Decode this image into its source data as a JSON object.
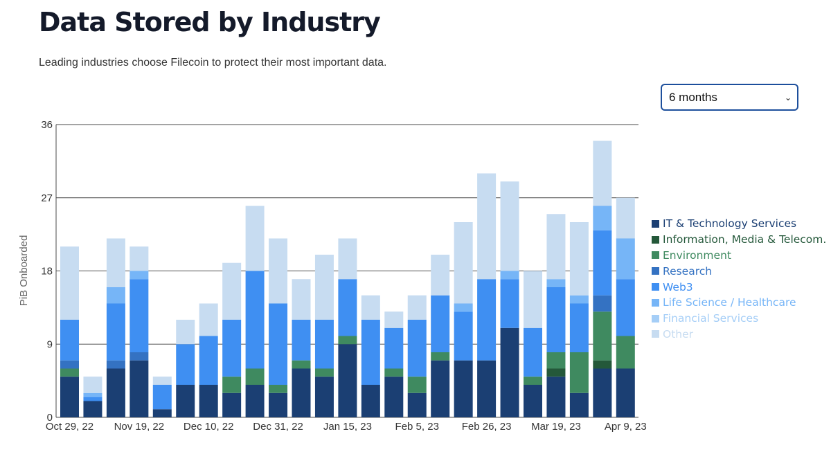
{
  "header": {
    "title": "Data Stored by Industry",
    "subtitle": "Leading industries choose Filecoin to protect their most important data."
  },
  "range_select": {
    "value": "6 months"
  },
  "chart_data": {
    "type": "bar",
    "stacked": true,
    "title": "Data Stored by Industry",
    "xlabel": "",
    "ylabel": "PiB Onboarded",
    "ylim": [
      0,
      36
    ],
    "yticks": [
      0,
      9,
      18,
      27,
      36
    ],
    "grid": true,
    "legend_position": "right",
    "x_tick_labels": [
      "Oct 29, 22",
      "Nov 19, 22",
      "Dec 10, 22",
      "Dec 31, 22",
      "Jan 15, 23",
      "Feb 5, 23",
      "Feb 26, 23",
      "Mar 19, 23",
      "Apr 9, 23"
    ],
    "x_tick_bar_index": [
      0,
      3,
      6,
      9,
      12,
      15,
      18,
      21,
      24
    ],
    "bar_count": 25,
    "series": [
      {
        "name": "IT & Technology Services",
        "color": "#1b3f73",
        "values": [
          5,
          2,
          6,
          7,
          1,
          4,
          4,
          3,
          4,
          3,
          6,
          5,
          9,
          4,
          5,
          3,
          7,
          7,
          7,
          11,
          4,
          5,
          3,
          6,
          6
        ]
      },
      {
        "name": "Information, Media & Telecom.",
        "color": "#24583a",
        "values": [
          0,
          0,
          0,
          0,
          0,
          0,
          0,
          0,
          0,
          0,
          0,
          0,
          0,
          0,
          0,
          0,
          0,
          0,
          0,
          0,
          0,
          1,
          0,
          1,
          0
        ]
      },
      {
        "name": "Environment",
        "color": "#3f8a60",
        "values": [
          1,
          0,
          0,
          0,
          0,
          0,
          0,
          2,
          2,
          1,
          1,
          1,
          1,
          0,
          1,
          2,
          1,
          0,
          0,
          0,
          1,
          2,
          5,
          6,
          4
        ]
      },
      {
        "name": "Research",
        "color": "#3472c2",
        "values": [
          1,
          0,
          1,
          1,
          0,
          0,
          0,
          0,
          0,
          0,
          0,
          0,
          0,
          0,
          0,
          0,
          0,
          0,
          0,
          0,
          0,
          0,
          0,
          2,
          0
        ]
      },
      {
        "name": "Web3",
        "color": "#3f8ff2",
        "values": [
          5,
          0.5,
          7,
          9,
          3,
          5,
          6,
          7,
          12,
          10,
          5,
          6,
          7,
          8,
          5,
          7,
          7,
          6,
          10,
          6,
          6,
          8,
          6,
          8,
          7
        ]
      },
      {
        "name": "Life Science / Healthcare",
        "color": "#76b5f7",
        "values": [
          0,
          0.5,
          2,
          1,
          0,
          0,
          0,
          0,
          0,
          0,
          0,
          0,
          0,
          0,
          0,
          0,
          0,
          1,
          0,
          1,
          0,
          1,
          1,
          3,
          5
        ]
      },
      {
        "name": "Financial Services",
        "color": "#a5cef7",
        "values": [
          0,
          0,
          0,
          0,
          0,
          0,
          0,
          0,
          0,
          0,
          0,
          0,
          0,
          0,
          0,
          0,
          0,
          0,
          0,
          0,
          0,
          0,
          0,
          0,
          0
        ]
      },
      {
        "name": "Other",
        "color": "#c7dcf1",
        "values": [
          9,
          2,
          6,
          3,
          1,
          3,
          4,
          7,
          8,
          8,
          5,
          8,
          5,
          3,
          2,
          3,
          5,
          10,
          13,
          11,
          7,
          8,
          9,
          8,
          5
        ]
      }
    ],
    "colors": {
      "grid": "#4a4a4a",
      "axis_text": "#333333",
      "ylabel": "#666666"
    }
  }
}
